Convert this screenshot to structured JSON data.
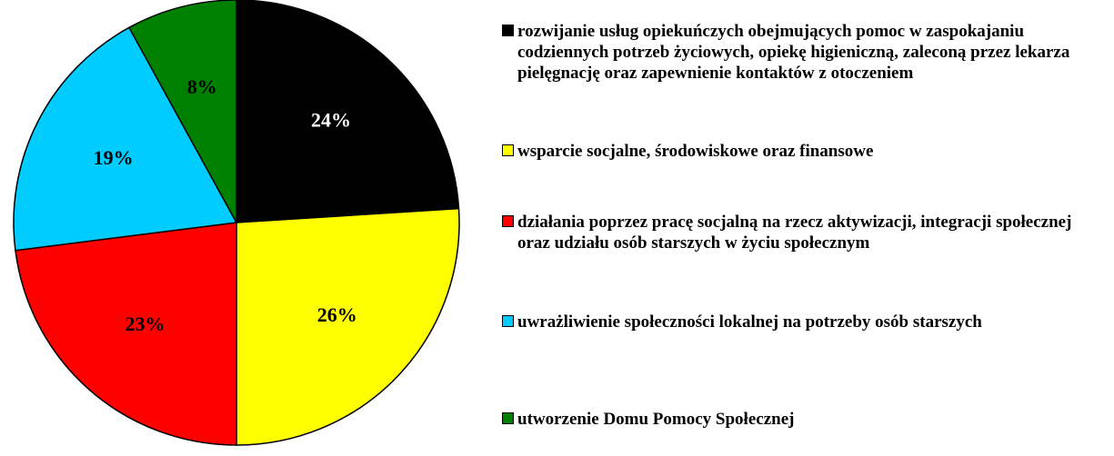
{
  "chart_data": {
    "type": "pie",
    "categories": [
      "rozwijanie usług opiekuńczych obejmujących pomoc w zaspokajaniu codziennych potrzeb życiowych, opiekę higieniczną, zaleconą przez lekarza pielęgnację oraz zapewnienie kontaktów z otoczeniem",
      "wsparcie socjalne, środowiskowe oraz finansowe",
      "działania poprzez pracę socjalną na rzecz aktywizacji, integracji społecznej oraz udziału osób starszych w życiu społecznym",
      "uwrażliwienie społeczności lokalnej na potrzeby osób starszych",
      "utworzenie Domu Pomocy Społecznej"
    ],
    "values": [
      24,
      26,
      23,
      19,
      8
    ],
    "value_labels": [
      "24%",
      "26%",
      "23%",
      "19%",
      "8%"
    ],
    "colors": [
      "#000000",
      "#ffff00",
      "#ff0000",
      "#00ccff",
      "#008000"
    ]
  }
}
